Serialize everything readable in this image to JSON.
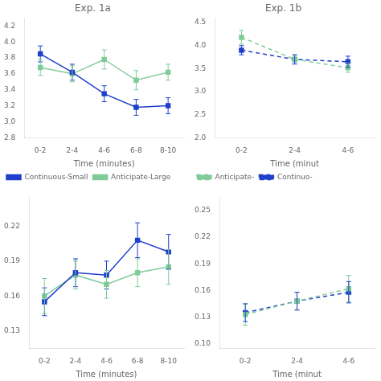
{
  "chart_data": [
    {
      "type": "line",
      "title": "Exp. 1a",
      "x_label": "Time (minutes)",
      "categories": [
        "0-2",
        "2-4",
        "4-6",
        "6-8",
        "8-10"
      ],
      "series": [
        {
          "name": "Continuous-Small",
          "color": "#1f3fcc",
          "marker": "square",
          "line_style": "solid",
          "values": [
            3.85,
            3.62,
            3.35,
            3.18,
            3.2
          ],
          "errors": [
            0.1,
            0.1,
            0.1,
            0.1,
            0.1
          ]
        },
        {
          "name": "Anticipate-Large",
          "color": "#7fcc99",
          "marker": "square",
          "line_style": "solid",
          "values": [
            3.68,
            3.6,
            3.78,
            3.52,
            3.62
          ],
          "errors": [
            0.1,
            0.1,
            0.12,
            0.12,
            0.1
          ]
        }
      ],
      "ylim": [
        2.8,
        4.3
      ],
      "yticks": [
        2.8,
        {
          "value": 3.0,
          "label": "3.0"
        },
        3.2,
        3.4,
        3.6,
        3.8,
        {
          "value": 4.0,
          "label": "4.0"
        },
        4.2
      ],
      "legend": "lower left",
      "grid": false
    },
    {
      "type": "line",
      "title": "Exp. 1b",
      "x_label": "Time (minut",
      "categories": [
        "0-2",
        "2-4",
        "4-6"
      ],
      "series": [
        {
          "name": "Anticipate-",
          "color": "#7fcc99",
          "marker": "square",
          "line_style": "dashed",
          "values": [
            4.18,
            3.7,
            3.52
          ],
          "errors": [
            0.15,
            0.1,
            0.1
          ]
        },
        {
          "name": "Continuo-",
          "color": "#1f3fcc",
          "marker": "square",
          "line_style": "dashed",
          "values": [
            3.9,
            3.7,
            3.65
          ],
          "errors": [
            0.1,
            0.1,
            0.12
          ]
        }
      ],
      "ylim": [
        2.0,
        4.6
      ],
      "yticks": [
        {
          "value": 2.0,
          "label": "2.0"
        },
        2.5,
        {
          "value": 3.0,
          "label": "3.0"
        },
        3.5,
        {
          "value": 4.0,
          "label": "4.0"
        },
        4.5
      ],
      "legend": "lower left",
      "grid": false
    },
    {
      "type": "line",
      "x_label": "Time (minutes)",
      "categories": [
        "0-2",
        "2-4",
        "4-6",
        "6-8",
        "8-10"
      ],
      "series": [
        {
          "color": "#1f3fcc",
          "marker": "square",
          "line_style": "solid",
          "values": [
            0.155,
            0.18,
            0.178,
            0.208,
            0.198
          ],
          "errors": [
            0.012,
            0.012,
            0.012,
            0.015,
            0.015
          ]
        },
        {
          "color": "#7fcc99",
          "marker": "square",
          "line_style": "solid",
          "values": [
            0.16,
            0.178,
            0.17,
            0.18,
            0.185
          ],
          "errors": [
            0.015,
            0.012,
            0.012,
            0.012,
            0.015
          ]
        }
      ],
      "ylim": [
        0.115,
        0.245
      ],
      "yticks": [
        0.13,
        0.16,
        0.19,
        0.22
      ],
      "grid": false
    },
    {
      "type": "line",
      "x_label": "Time (minut",
      "categories": [
        "0-2",
        "2-4",
        "4-6"
      ],
      "series": [
        {
          "color": "#7fcc99",
          "marker": "square",
          "line_style": "dashed",
          "values": [
            0.133,
            0.148,
            0.162
          ],
          "errors": [
            0.012,
            0.01,
            0.015
          ]
        },
        {
          "color": "#1f3fcc",
          "marker": "square",
          "line_style": "dashed",
          "values": [
            0.135,
            0.148,
            0.158
          ],
          "errors": [
            0.01,
            0.01,
            0.012
          ]
        }
      ],
      "ylim": [
        0.095,
        0.265
      ],
      "yticks": [
        {
          "value": 0.1,
          "label": "0.10"
        },
        0.13,
        0.16,
        0.19,
        0.22,
        0.25
      ],
      "grid": false
    }
  ]
}
